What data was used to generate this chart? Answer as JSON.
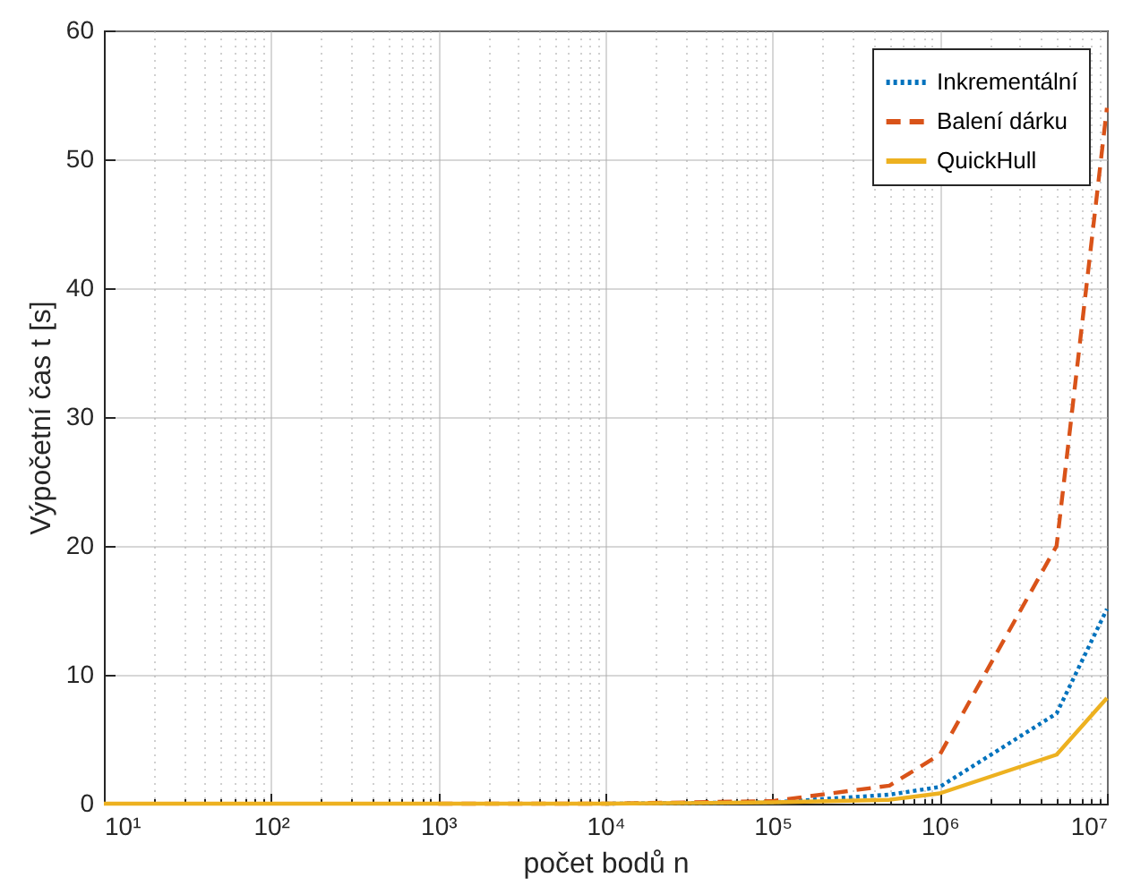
{
  "chart_data": {
    "type": "line",
    "xlabel": "počet bodů n",
    "ylabel": "Výpočetní čas t [s]",
    "x": [
      10,
      100,
      1000,
      10000,
      100000,
      500000,
      1000000,
      5000000,
      10000000
    ],
    "series": [
      {
        "name": "Inkrementální",
        "color": "#0072bd",
        "line_style": "dotted",
        "values": [
          null,
          null,
          null,
          0,
          0.1,
          0.7,
          1.3,
          7.0,
          15.1
        ]
      },
      {
        "name": "Balení dárku",
        "color": "#d95319",
        "line_style": "dashed",
        "values": [
          null,
          null,
          0,
          0,
          0.2,
          1.4,
          3.8,
          20,
          54
        ]
      },
      {
        "name": "QuickHull",
        "color": "#edb120",
        "line_style": "solid",
        "values": [
          0,
          0,
          0,
          0,
          0.1,
          0.3,
          0.8,
          3.8,
          8.2
        ]
      }
    ],
    "log": "x",
    "xlim": [
      10,
      10000000
    ],
    "xticks": [
      {
        "value": 10,
        "label": "10¹"
      },
      {
        "value": 20,
        "label": null
      },
      {
        "value": 30,
        "label": null
      },
      {
        "value": 40,
        "label": null
      },
      {
        "value": 50,
        "label": null
      },
      {
        "value": 60,
        "label": null
      },
      {
        "value": 70,
        "label": null
      },
      {
        "value": 80,
        "label": null
      },
      {
        "value": 90,
        "label": null
      },
      {
        "value": 100,
        "label": "10²"
      },
      {
        "value": 200,
        "label": null
      },
      {
        "value": 300,
        "label": null
      },
      {
        "value": 400,
        "label": null
      },
      {
        "value": 500,
        "label": null
      },
      {
        "value": 600,
        "label": null
      },
      {
        "value": 700,
        "label": null
      },
      {
        "value": 800,
        "label": null
      },
      {
        "value": 900,
        "label": null
      },
      {
        "value": 1000,
        "label": "10³"
      },
      {
        "value": 2000,
        "label": null
      },
      {
        "value": 3000,
        "label": null
      },
      {
        "value": 4000,
        "label": null
      },
      {
        "value": 5000,
        "label": null
      },
      {
        "value": 6000,
        "label": null
      },
      {
        "value": 7000,
        "label": null
      },
      {
        "value": 8000,
        "label": null
      },
      {
        "value": 9000,
        "label": null
      },
      {
        "value": 10000,
        "label": "10⁴"
      },
      {
        "value": 20000,
        "label": null
      },
      {
        "value": 30000,
        "label": null
      },
      {
        "value": 40000,
        "label": null
      },
      {
        "value": 50000,
        "label": null
      },
      {
        "value": 60000,
        "label": null
      },
      {
        "value": 70000,
        "label": null
      },
      {
        "value": 80000,
        "label": null
      },
      {
        "value": 90000,
        "label": null
      },
      {
        "value": 100000,
        "label": "10⁵"
      },
      {
        "value": 200000,
        "label": null
      },
      {
        "value": 300000,
        "label": null
      },
      {
        "value": 400000,
        "label": null
      },
      {
        "value": 500000,
        "label": null
      },
      {
        "value": 600000,
        "label": null
      },
      {
        "value": 700000,
        "label": null
      },
      {
        "value": 800000,
        "label": null
      },
      {
        "value": 900000,
        "label": null
      },
      {
        "value": 1000000,
        "label": "10⁶"
      },
      {
        "value": 2000000,
        "label": null
      },
      {
        "value": 3000000,
        "label": null
      },
      {
        "value": 4000000,
        "label": null
      },
      {
        "value": 5000000,
        "label": null
      },
      {
        "value": 6000000,
        "label": null
      },
      {
        "value": 7000000,
        "label": null
      },
      {
        "value": 8000000,
        "label": null
      },
      {
        "value": 9000000,
        "label": null
      },
      {
        "value": 10000000,
        "label": "10⁷"
      }
    ],
    "ylim": [
      0,
      60
    ],
    "yticks": [
      0,
      10,
      20,
      30,
      40,
      50,
      60
    ],
    "grid": true,
    "legend": "top right"
  }
}
